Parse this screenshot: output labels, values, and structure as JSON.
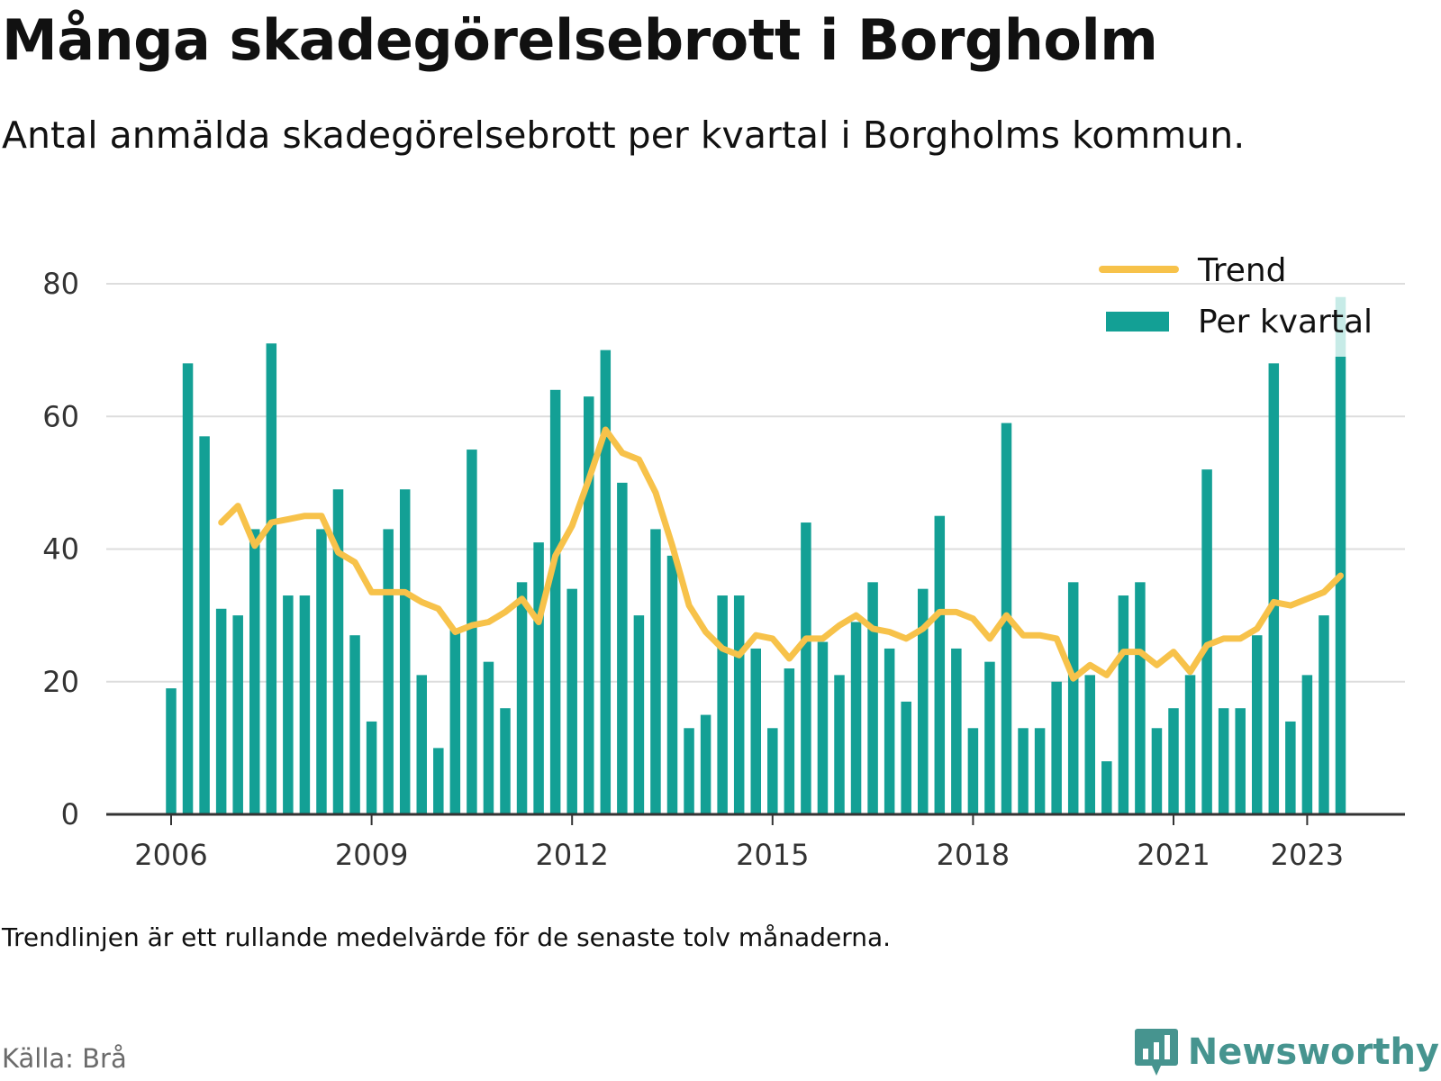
{
  "title": "Många skadegörelsebrott i Borgholm",
  "subtitle": "Antal anmälda skadegörelsebrott per kvartal i Borgholms kommun.",
  "note": "Trendlinjen är ett rullande medelvärde för de senaste tolv månaderna.",
  "source": "Källa: Brå",
  "brand": {
    "name": "Newsworthy",
    "icon": "newsworthy-logo-icon",
    "color": "#46948f"
  },
  "colors": {
    "bars": "#13a095",
    "trend": "#f7c24a",
    "grid": "#dddddd",
    "axis": "#333333"
  },
  "chart_data": {
    "type": "bar",
    "title": "",
    "xlabel": "",
    "ylabel": "",
    "ylim": [
      0,
      80
    ],
    "y_ticks": [
      "0",
      "20",
      "40",
      "60",
      "80"
    ],
    "x_ticks": [
      "2006",
      "2009",
      "2012",
      "2015",
      "2018",
      "2021",
      "2023"
    ],
    "grid": true,
    "legend": {
      "placement": "top-right",
      "entries": [
        "Trend",
        "Per kvartal"
      ]
    },
    "categories": [
      "2006 Q1",
      "2006 Q2",
      "2006 Q3",
      "2006 Q4",
      "2007 Q1",
      "2007 Q2",
      "2007 Q3",
      "2007 Q4",
      "2008 Q1",
      "2008 Q2",
      "2008 Q3",
      "2008 Q4",
      "2009 Q1",
      "2009 Q2",
      "2009 Q3",
      "2009 Q4",
      "2010 Q1",
      "2010 Q2",
      "2010 Q3",
      "2010 Q4",
      "2011 Q1",
      "2011 Q2",
      "2011 Q3",
      "2011 Q4",
      "2012 Q1",
      "2012 Q2",
      "2012 Q3",
      "2012 Q4",
      "2013 Q1",
      "2013 Q2",
      "2013 Q3",
      "2013 Q4",
      "2014 Q1",
      "2014 Q2",
      "2014 Q3",
      "2014 Q4",
      "2015 Q1",
      "2015 Q2",
      "2015 Q3",
      "2015 Q4",
      "2016 Q1",
      "2016 Q2",
      "2016 Q3",
      "2016 Q4",
      "2017 Q1",
      "2017 Q2",
      "2017 Q3",
      "2017 Q4",
      "2018 Q1",
      "2018 Q2",
      "2018 Q3",
      "2018 Q4",
      "2019 Q1",
      "2019 Q2",
      "2019 Q3",
      "2019 Q4",
      "2020 Q1",
      "2020 Q2",
      "2020 Q3",
      "2020 Q4",
      "2021 Q1",
      "2021 Q2",
      "2021 Q3",
      "2021 Q4",
      "2022 Q1",
      "2022 Q2",
      "2022 Q3",
      "2022 Q4",
      "2023 Q1",
      "2023 Q2",
      "2023 Q3"
    ],
    "series": [
      {
        "name": "Per kvartal",
        "type": "bar",
        "values": [
          19,
          68,
          57,
          31,
          30,
          43,
          71,
          33,
          33,
          43,
          49,
          27,
          14,
          43,
          49,
          21,
          10,
          28,
          55,
          23,
          16,
          35,
          41,
          64,
          34,
          63,
          70,
          50,
          30,
          43,
          39,
          13,
          15,
          33,
          33,
          25,
          13,
          22,
          44,
          26,
          21,
          29,
          35,
          25,
          17,
          34,
          45,
          25,
          13,
          23,
          59,
          13,
          13,
          20,
          35,
          21,
          8,
          33,
          35,
          13,
          16,
          21,
          52,
          16,
          16,
          27,
          68,
          14,
          21,
          30,
          78
        ],
        "highlight_last": true
      },
      {
        "name": "Trend",
        "type": "line",
        "values": [
          null,
          null,
          null,
          44,
          46.5,
          40.5,
          44,
          44.5,
          45,
          45,
          39.5,
          38,
          33.5,
          33.5,
          33.5,
          32,
          31,
          27.5,
          28.5,
          29,
          30.5,
          32.5,
          29,
          39,
          43.5,
          50.5,
          58,
          54.5,
          53.5,
          48.5,
          40.5,
          31.5,
          27.5,
          25,
          24,
          27,
          26.5,
          23.5,
          26.5,
          26.5,
          28.5,
          30,
          28,
          27.5,
          26.5,
          28,
          30.5,
          30.5,
          29.5,
          26.5,
          30,
          27,
          27,
          26.5,
          20.5,
          22.5,
          21,
          24.5,
          24.5,
          22.5,
          24.5,
          21.5,
          25.5,
          26.5,
          26.5,
          28,
          32,
          31.5,
          32.5,
          33.5,
          36
        ]
      }
    ]
  }
}
